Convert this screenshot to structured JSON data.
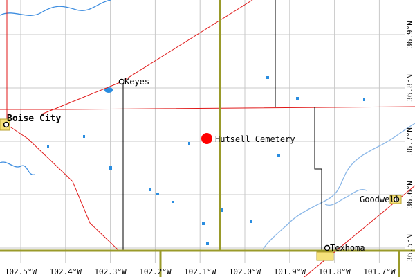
{
  "places": [
    {
      "label": "Boise City"
    },
    {
      "label": "Keyes"
    },
    {
      "label": "Goodwell"
    },
    {
      "label": "Texhoma"
    }
  ],
  "feature": {
    "label": "Hutsell Cemetery"
  },
  "longitude_labels": [
    "102.5°W",
    "102.4°W",
    "102.3°W",
    "102.2°W",
    "102.1°W",
    "102.0°W",
    "101.9°W",
    "101.8°W",
    "101.7°W"
  ],
  "latitude_labels": [
    "36.9°N",
    "36.8°N",
    "36.7°N",
    "36.6°N",
    "36.5°N"
  ]
}
